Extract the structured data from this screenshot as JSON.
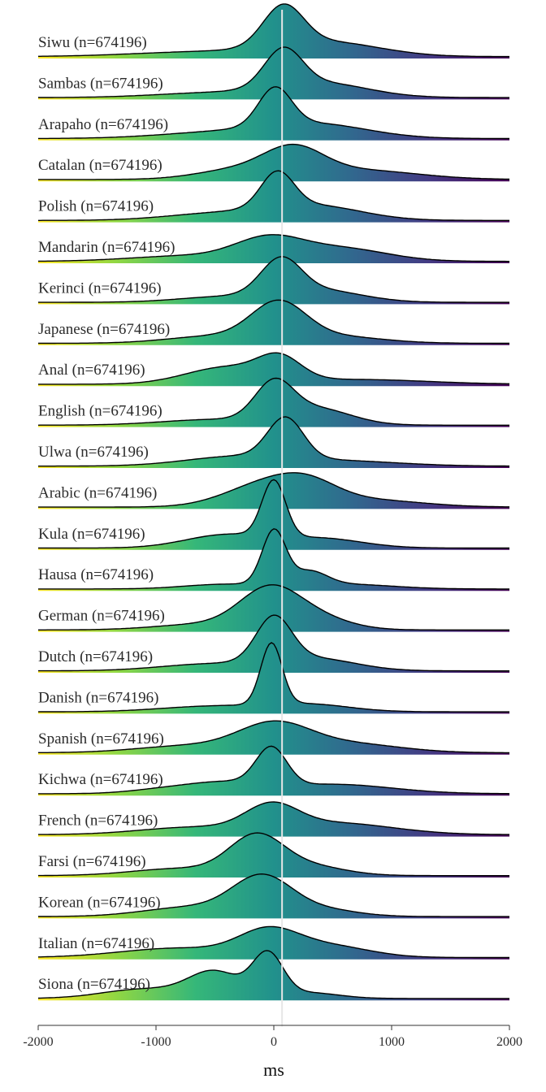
{
  "chart_data": {
    "type": "ridgeline",
    "title": "",
    "xlabel": "ms",
    "ylabel": "",
    "xlim": [
      -2000,
      2000
    ],
    "x_ticks": [
      -2000,
      -1000,
      0,
      1000,
      2000
    ],
    "x_tick_labels": [
      "-2000",
      "-1000",
      "0",
      "1000",
      "2000"
    ],
    "reference_line_x": 70,
    "grid": false,
    "legend": "none",
    "colormap": [
      "#fde725",
      "#90d743",
      "#35b779",
      "#21918c",
      "#31688e",
      "#443983",
      "#440154"
    ],
    "outline_color": "#000000",
    "reference_line_color": "#e6e6e6",
    "series": [
      {
        "label": "Siwu (n=674196)",
        "peaks": [
          {
            "x": 80,
            "height": 0.85,
            "width": 170
          },
          {
            "x": 450,
            "height": 0.3,
            "width": 450
          },
          {
            "x": -600,
            "height": 0.1,
            "width": 600
          }
        ]
      },
      {
        "label": "Sambas (n=674196)",
        "peaks": [
          {
            "x": 80,
            "height": 0.8,
            "width": 160
          },
          {
            "x": 400,
            "height": 0.3,
            "width": 400
          },
          {
            "x": -500,
            "height": 0.1,
            "width": 500
          }
        ]
      },
      {
        "label": "Arapaho (n=674196)",
        "peaks": [
          {
            "x": 10,
            "height": 0.8,
            "width": 140
          },
          {
            "x": 350,
            "height": 0.3,
            "width": 450
          },
          {
            "x": -500,
            "height": 0.12,
            "width": 500
          }
        ]
      },
      {
        "label": "Catalan (n=674196)",
        "peaks": [
          {
            "x": 170,
            "height": 0.55,
            "width": 250
          },
          {
            "x": -300,
            "height": 0.2,
            "width": 350
          },
          {
            "x": 700,
            "height": 0.2,
            "width": 500
          }
        ]
      },
      {
        "label": "Polish (n=674196)",
        "peaks": [
          {
            "x": 30,
            "height": 0.75,
            "width": 140
          },
          {
            "x": 350,
            "height": 0.3,
            "width": 400
          },
          {
            "x": -450,
            "height": 0.15,
            "width": 450
          }
        ]
      },
      {
        "label": "Mandarin (n=674196)",
        "peaks": [
          {
            "x": -50,
            "height": 0.42,
            "width": 280
          },
          {
            "x": 550,
            "height": 0.28,
            "width": 400
          },
          {
            "x": -700,
            "height": 0.12,
            "width": 500
          }
        ]
      },
      {
        "label": "Kerinci (n=674196)",
        "peaks": [
          {
            "x": 60,
            "height": 0.75,
            "width": 170
          },
          {
            "x": 400,
            "height": 0.25,
            "width": 350
          },
          {
            "x": -400,
            "height": 0.12,
            "width": 400
          }
        ]
      },
      {
        "label": "Japanese (n=674196)",
        "peaks": [
          {
            "x": 40,
            "height": 0.78,
            "width": 230
          },
          {
            "x": 500,
            "height": 0.15,
            "width": 400
          },
          {
            "x": -500,
            "height": 0.15,
            "width": 400
          }
        ]
      },
      {
        "label": "Anal (n=674196)",
        "peaks": [
          {
            "x": 50,
            "height": 0.45,
            "width": 180
          },
          {
            "x": -400,
            "height": 0.35,
            "width": 350
          },
          {
            "x": 700,
            "height": 0.1,
            "width": 600
          }
        ]
      },
      {
        "label": "English (n=674196)",
        "peaks": [
          {
            "x": 0,
            "height": 0.75,
            "width": 160
          },
          {
            "x": 350,
            "height": 0.35,
            "width": 300
          },
          {
            "x": -500,
            "height": 0.12,
            "width": 450
          }
        ]
      },
      {
        "label": "Ulwa (n=674196)",
        "peaks": [
          {
            "x": 100,
            "height": 0.85,
            "width": 150
          },
          {
            "x": -300,
            "height": 0.2,
            "width": 450
          },
          {
            "x": 600,
            "height": 0.1,
            "width": 500
          }
        ]
      },
      {
        "label": "Arabic (n=674196)",
        "peaks": [
          {
            "x": -50,
            "height": 0.5,
            "width": 350
          },
          {
            "x": 300,
            "height": 0.3,
            "width": 250
          },
          {
            "x": 800,
            "height": 0.15,
            "width": 450
          }
        ]
      },
      {
        "label": "Kula (n=674196)",
        "peaks": [
          {
            "x": 0,
            "height": 1.2,
            "width": 100
          },
          {
            "x": -400,
            "height": 0.28,
            "width": 350
          },
          {
            "x": 400,
            "height": 0.2,
            "width": 350
          }
        ]
      },
      {
        "label": "Hausa (n=674196)",
        "peaks": [
          {
            "x": 0,
            "height": 1.15,
            "width": 100
          },
          {
            "x": 300,
            "height": 0.3,
            "width": 150
          },
          {
            "x": 600,
            "height": 0.1,
            "width": 400
          },
          {
            "x": -400,
            "height": 0.1,
            "width": 350
          }
        ]
      },
      {
        "label": "German (n=674196)",
        "peaks": [
          {
            "x": -50,
            "height": 0.75,
            "width": 250
          },
          {
            "x": 300,
            "height": 0.3,
            "width": 300
          },
          {
            "x": -600,
            "height": 0.12,
            "width": 400
          }
        ]
      },
      {
        "label": "Dutch (n=674196)",
        "peaks": [
          {
            "x": 0,
            "height": 0.95,
            "width": 150
          },
          {
            "x": 350,
            "height": 0.25,
            "width": 350
          },
          {
            "x": -500,
            "height": 0.15,
            "width": 450
          }
        ]
      },
      {
        "label": "Danish (n=674196)",
        "peaks": [
          {
            "x": -20,
            "height": 1.3,
            "width": 90
          },
          {
            "x": 300,
            "height": 0.15,
            "width": 350
          },
          {
            "x": -500,
            "height": 0.12,
            "width": 450
          }
        ]
      },
      {
        "label": "Spanish (n=674196)",
        "peaks": [
          {
            "x": 0,
            "height": 0.55,
            "width": 300
          },
          {
            "x": 600,
            "height": 0.2,
            "width": 450
          },
          {
            "x": -700,
            "height": 0.15,
            "width": 450
          }
        ]
      },
      {
        "label": "Kichwa (n=674196)",
        "peaks": [
          {
            "x": -20,
            "height": 0.8,
            "width": 130
          },
          {
            "x": -400,
            "height": 0.2,
            "width": 300
          },
          {
            "x": 500,
            "height": 0.2,
            "width": 500
          },
          {
            "x": -900,
            "height": 0.1,
            "width": 300
          }
        ]
      },
      {
        "label": "French (n=674196)",
        "peaks": [
          {
            "x": -20,
            "height": 0.5,
            "width": 220
          },
          {
            "x": 500,
            "height": 0.25,
            "width": 500
          },
          {
            "x": -700,
            "height": 0.15,
            "width": 450
          }
        ]
      },
      {
        "label": "Farsi (n=674196)",
        "peaks": [
          {
            "x": -150,
            "height": 0.8,
            "width": 230
          },
          {
            "x": 300,
            "height": 0.2,
            "width": 300
          },
          {
            "x": -800,
            "height": 0.15,
            "width": 400
          }
        ]
      },
      {
        "label": "Korean (n=674196)",
        "peaks": [
          {
            "x": -100,
            "height": 0.8,
            "width": 250
          },
          {
            "x": 400,
            "height": 0.15,
            "width": 300
          },
          {
            "x": -700,
            "height": 0.2,
            "width": 400
          }
        ]
      },
      {
        "label": "Italian (n=674196)",
        "peaks": [
          {
            "x": -50,
            "height": 0.5,
            "width": 250
          },
          {
            "x": 450,
            "height": 0.25,
            "width": 350
          },
          {
            "x": -800,
            "height": 0.2,
            "width": 500
          }
        ]
      },
      {
        "label": "Siona (n=674196)",
        "peaks": [
          {
            "x": -50,
            "height": 0.9,
            "width": 130
          },
          {
            "x": -500,
            "height": 0.55,
            "width": 220
          },
          {
            "x": -1100,
            "height": 0.2,
            "width": 350
          },
          {
            "x": 300,
            "height": 0.12,
            "width": 250
          }
        ]
      }
    ]
  }
}
